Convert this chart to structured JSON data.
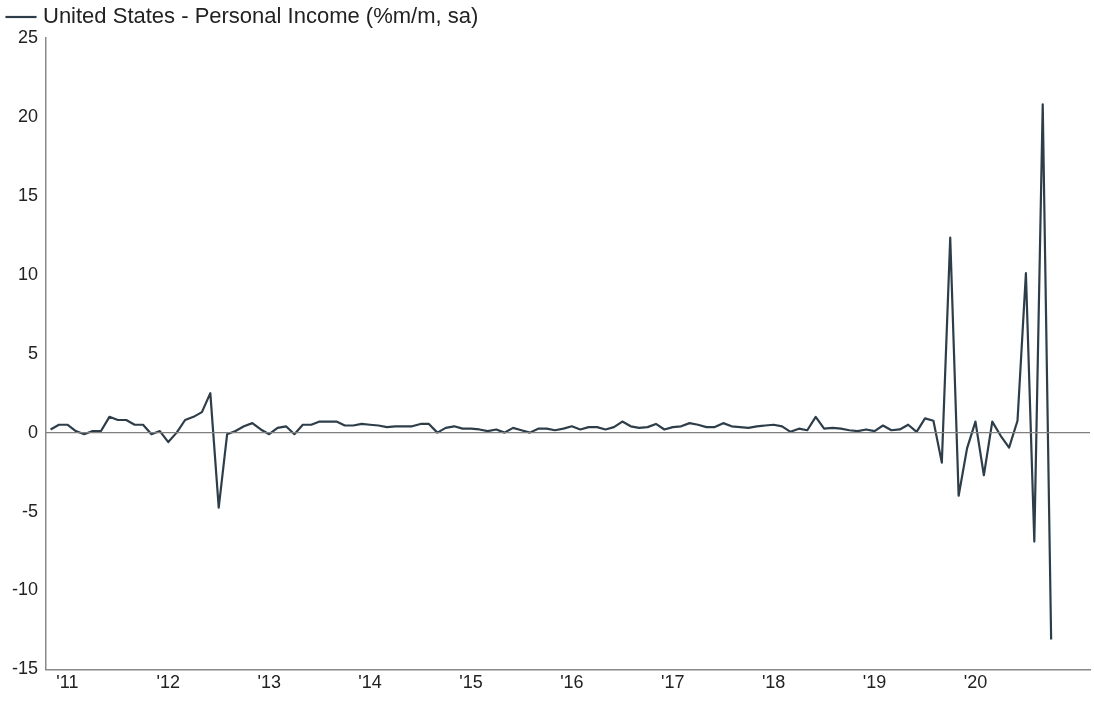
{
  "chart_data": {
    "type": "line",
    "x": [
      "2011-05",
      "2011-06",
      "2011-07",
      "2011-08",
      "2011-09",
      "2011-10",
      "2011-11",
      "2011-12",
      "2012-01",
      "2012-02",
      "2012-03",
      "2012-04",
      "2012-05",
      "2012-06",
      "2012-07",
      "2012-08",
      "2012-09",
      "2012-10",
      "2012-11",
      "2012-12",
      "2013-01",
      "2013-02",
      "2013-03",
      "2013-04",
      "2013-05",
      "2013-06",
      "2013-07",
      "2013-08",
      "2013-09",
      "2013-10",
      "2013-11",
      "2013-12",
      "2014-01",
      "2014-02",
      "2014-03",
      "2014-04",
      "2014-05",
      "2014-06",
      "2014-07",
      "2014-08",
      "2014-09",
      "2014-10",
      "2014-11",
      "2014-12",
      "2015-01",
      "2015-02",
      "2015-03",
      "2015-04",
      "2015-05",
      "2015-06",
      "2015-07",
      "2015-08",
      "2015-09",
      "2015-10",
      "2015-11",
      "2015-12",
      "2016-01",
      "2016-02",
      "2016-03",
      "2016-04",
      "2016-05",
      "2016-06",
      "2016-07",
      "2016-08",
      "2016-09",
      "2016-10",
      "2016-11",
      "2016-12",
      "2017-01",
      "2017-02",
      "2017-03",
      "2017-04",
      "2017-05",
      "2017-06",
      "2017-07",
      "2017-08",
      "2017-09",
      "2017-10",
      "2017-11",
      "2017-12",
      "2018-01",
      "2018-02",
      "2018-03",
      "2018-04",
      "2018-05",
      "2018-06",
      "2018-07",
      "2018-08",
      "2018-09",
      "2018-10",
      "2018-11",
      "2018-12",
      "2019-01",
      "2019-02",
      "2019-03",
      "2019-04",
      "2019-05",
      "2019-06",
      "2019-07",
      "2019-08",
      "2019-09",
      "2019-10",
      "2019-11",
      "2019-12",
      "2020-01",
      "2020-02",
      "2020-03",
      "2020-04",
      "2020-05",
      "2020-06",
      "2020-07",
      "2020-08",
      "2020-09",
      "2020-10",
      "2020-11",
      "2020-12",
      "2021-01",
      "2021-02",
      "2021-03",
      "2021-04"
    ],
    "series": [
      {
        "name": "United States - Personal Income (%m/m, sa)",
        "color": "#2d3e4a",
        "values": [
          0.2,
          0.5,
          0.5,
          0.1,
          -0.1,
          0.1,
          0.1,
          1.0,
          0.8,
          0.8,
          0.5,
          0.5,
          -0.1,
          0.1,
          -0.6,
          0.0,
          0.8,
          1.0,
          1.3,
          2.5,
          -4.75,
          -0.1,
          0.1,
          0.4,
          0.6,
          0.2,
          -0.1,
          0.3,
          0.4,
          -0.1,
          0.5,
          0.5,
          0.7,
          0.7,
          0.7,
          0.45,
          0.45,
          0.55,
          0.5,
          0.45,
          0.35,
          0.4,
          0.4,
          0.4,
          0.55,
          0.55,
          0.0,
          0.3,
          0.4,
          0.25,
          0.25,
          0.2,
          0.1,
          0.2,
          0.0,
          0.3,
          0.15,
          0.0,
          0.25,
          0.25,
          0.15,
          0.25,
          0.4,
          0.2,
          0.35,
          0.35,
          0.2,
          0.35,
          0.7,
          0.4,
          0.3,
          0.35,
          0.55,
          0.2,
          0.35,
          0.4,
          0.6,
          0.5,
          0.35,
          0.35,
          0.6,
          0.4,
          0.35,
          0.3,
          0.4,
          0.45,
          0.5,
          0.4,
          0.05,
          0.25,
          0.15,
          1.0,
          0.25,
          0.3,
          0.25,
          0.15,
          0.1,
          0.2,
          0.1,
          0.45,
          0.15,
          0.2,
          0.5,
          0.05,
          0.9,
          0.75,
          -1.9,
          12.35,
          -4.0,
          -1.0,
          0.7,
          -2.7,
          0.7,
          -0.2,
          -0.95,
          0.75,
          10.1,
          -6.9,
          20.8,
          -13.1
        ]
      }
    ],
    "xlim": [
      "2011-04-15",
      "2021-08-20"
    ],
    "xticks": [
      {
        "value": "2011-07",
        "label": "'11"
      },
      {
        "value": "2012-07",
        "label": "'12"
      },
      {
        "value": "2013-07",
        "label": "'13"
      },
      {
        "value": "2014-07",
        "label": "'14"
      },
      {
        "value": "2015-07",
        "label": "'15"
      },
      {
        "value": "2016-07",
        "label": "'16"
      },
      {
        "value": "2017-07",
        "label": "'17"
      },
      {
        "value": "2018-07",
        "label": "'18"
      },
      {
        "value": "2019-07",
        "label": "'19"
      },
      {
        "value": "2020-07",
        "label": "'20"
      }
    ],
    "ylim": [
      -15,
      25
    ],
    "yticks": [
      -15,
      -10,
      -5,
      0,
      5,
      10,
      15,
      20,
      25
    ],
    "ref_lines": [
      {
        "axis": "y",
        "value": 0,
        "color": "#7f7f7f"
      }
    ],
    "grid": false,
    "legend": "top left",
    "marker": "none",
    "line_style": "solid"
  }
}
